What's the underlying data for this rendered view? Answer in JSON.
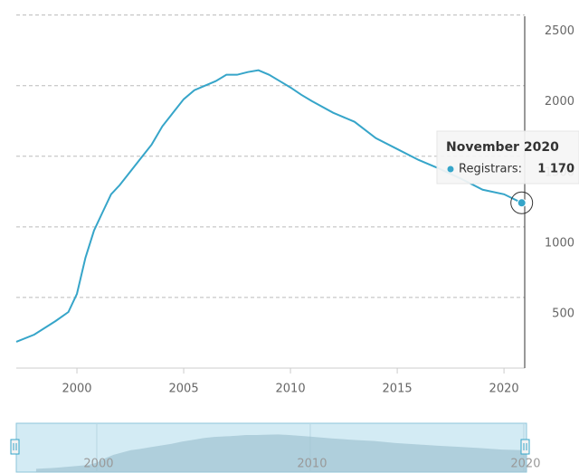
{
  "chart_data": {
    "type": "line",
    "x": [
      1997.16,
      1998,
      1999,
      1999.6,
      2000,
      2000.4,
      2000.8,
      2001.2,
      2001.6,
      2002,
      2002.5,
      2003,
      2003.5,
      2004,
      2004.5,
      2005,
      2005.5,
      2006,
      2006.5,
      2007,
      2007.5,
      2008,
      2008.5,
      2009,
      2009.5,
      2010,
      2010.5,
      2011,
      2012,
      2013,
      2014,
      2015,
      2016,
      2017,
      2018,
      2019,
      2020,
      2020.83
    ],
    "series": [
      {
        "name": "Registrars",
        "color": "#36a5c9",
        "values": [
          186,
          237,
          333,
          397,
          526,
          782,
          974,
          1103,
          1231,
          1295,
          1391,
          1487,
          1583,
          1712,
          1808,
          1904,
          1968,
          2000,
          2032,
          2077,
          2077,
          2096,
          2109,
          2077,
          2032,
          1987,
          1936,
          1891,
          1808,
          1744,
          1628,
          1551,
          1474,
          1410,
          1340,
          1263,
          1231,
          1170
        ]
      }
    ],
    "xlim": [
      1997.16,
      2020.97
    ],
    "xticks": [
      2000,
      2005,
      2010,
      2015,
      2020
    ],
    "ylim": [
      0,
      2600
    ],
    "yticks": [
      500,
      1000,
      1500,
      2000,
      2500
    ],
    "grid": true,
    "tooltip": {
      "title": "November 2020",
      "label": "Registrars:",
      "value": 1170,
      "value_label": "1 170"
    },
    "navigator": {
      "xlim": [
        1996.23,
        2020.13
      ],
      "xticks": [
        2000,
        2010,
        2020
      ]
    }
  }
}
